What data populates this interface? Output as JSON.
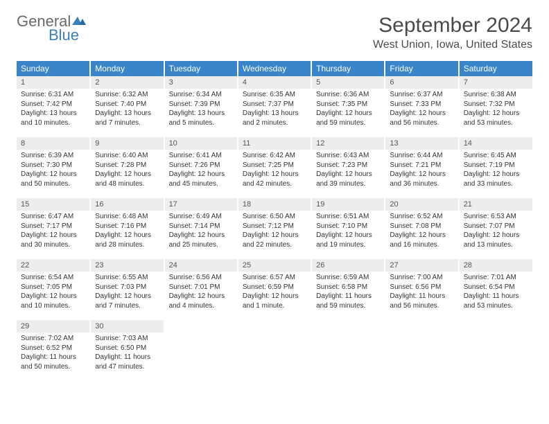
{
  "logo": {
    "word1": "General",
    "word2": "Blue"
  },
  "title": "September 2024",
  "location": "West Union, Iowa, United States",
  "colors": {
    "header_bg": "#3a85c9",
    "header_text": "#ffffff",
    "daynum_bg": "#eceded",
    "rule": "#3a7fb8",
    "logo_gray": "#6a6a6a",
    "logo_blue": "#3a7fb8"
  },
  "weekdays": [
    "Sunday",
    "Monday",
    "Tuesday",
    "Wednesday",
    "Thursday",
    "Friday",
    "Saturday"
  ],
  "days": [
    {
      "n": "1",
      "sunrise": "6:31 AM",
      "sunset": "7:42 PM",
      "daylight": "13 hours and 10 minutes."
    },
    {
      "n": "2",
      "sunrise": "6:32 AM",
      "sunset": "7:40 PM",
      "daylight": "13 hours and 7 minutes."
    },
    {
      "n": "3",
      "sunrise": "6:34 AM",
      "sunset": "7:39 PM",
      "daylight": "13 hours and 5 minutes."
    },
    {
      "n": "4",
      "sunrise": "6:35 AM",
      "sunset": "7:37 PM",
      "daylight": "13 hours and 2 minutes."
    },
    {
      "n": "5",
      "sunrise": "6:36 AM",
      "sunset": "7:35 PM",
      "daylight": "12 hours and 59 minutes."
    },
    {
      "n": "6",
      "sunrise": "6:37 AM",
      "sunset": "7:33 PM",
      "daylight": "12 hours and 56 minutes."
    },
    {
      "n": "7",
      "sunrise": "6:38 AM",
      "sunset": "7:32 PM",
      "daylight": "12 hours and 53 minutes."
    },
    {
      "n": "8",
      "sunrise": "6:39 AM",
      "sunset": "7:30 PM",
      "daylight": "12 hours and 50 minutes."
    },
    {
      "n": "9",
      "sunrise": "6:40 AM",
      "sunset": "7:28 PM",
      "daylight": "12 hours and 48 minutes."
    },
    {
      "n": "10",
      "sunrise": "6:41 AM",
      "sunset": "7:26 PM",
      "daylight": "12 hours and 45 minutes."
    },
    {
      "n": "11",
      "sunrise": "6:42 AM",
      "sunset": "7:25 PM",
      "daylight": "12 hours and 42 minutes."
    },
    {
      "n": "12",
      "sunrise": "6:43 AM",
      "sunset": "7:23 PM",
      "daylight": "12 hours and 39 minutes."
    },
    {
      "n": "13",
      "sunrise": "6:44 AM",
      "sunset": "7:21 PM",
      "daylight": "12 hours and 36 minutes."
    },
    {
      "n": "14",
      "sunrise": "6:45 AM",
      "sunset": "7:19 PM",
      "daylight": "12 hours and 33 minutes."
    },
    {
      "n": "15",
      "sunrise": "6:47 AM",
      "sunset": "7:17 PM",
      "daylight": "12 hours and 30 minutes."
    },
    {
      "n": "16",
      "sunrise": "6:48 AM",
      "sunset": "7:16 PM",
      "daylight": "12 hours and 28 minutes."
    },
    {
      "n": "17",
      "sunrise": "6:49 AM",
      "sunset": "7:14 PM",
      "daylight": "12 hours and 25 minutes."
    },
    {
      "n": "18",
      "sunrise": "6:50 AM",
      "sunset": "7:12 PM",
      "daylight": "12 hours and 22 minutes."
    },
    {
      "n": "19",
      "sunrise": "6:51 AM",
      "sunset": "7:10 PM",
      "daylight": "12 hours and 19 minutes."
    },
    {
      "n": "20",
      "sunrise": "6:52 AM",
      "sunset": "7:08 PM",
      "daylight": "12 hours and 16 minutes."
    },
    {
      "n": "21",
      "sunrise": "6:53 AM",
      "sunset": "7:07 PM",
      "daylight": "12 hours and 13 minutes."
    },
    {
      "n": "22",
      "sunrise": "6:54 AM",
      "sunset": "7:05 PM",
      "daylight": "12 hours and 10 minutes."
    },
    {
      "n": "23",
      "sunrise": "6:55 AM",
      "sunset": "7:03 PM",
      "daylight": "12 hours and 7 minutes."
    },
    {
      "n": "24",
      "sunrise": "6:56 AM",
      "sunset": "7:01 PM",
      "daylight": "12 hours and 4 minutes."
    },
    {
      "n": "25",
      "sunrise": "6:57 AM",
      "sunset": "6:59 PM",
      "daylight": "12 hours and 1 minute."
    },
    {
      "n": "26",
      "sunrise": "6:59 AM",
      "sunset": "6:58 PM",
      "daylight": "11 hours and 59 minutes."
    },
    {
      "n": "27",
      "sunrise": "7:00 AM",
      "sunset": "6:56 PM",
      "daylight": "11 hours and 56 minutes."
    },
    {
      "n": "28",
      "sunrise": "7:01 AM",
      "sunset": "6:54 PM",
      "daylight": "11 hours and 53 minutes."
    },
    {
      "n": "29",
      "sunrise": "7:02 AM",
      "sunset": "6:52 PM",
      "daylight": "11 hours and 50 minutes."
    },
    {
      "n": "30",
      "sunrise": "7:03 AM",
      "sunset": "6:50 PM",
      "daylight": "11 hours and 47 minutes."
    }
  ],
  "labels": {
    "sunrise": "Sunrise: ",
    "sunset": "Sunset: ",
    "daylight": "Daylight: "
  }
}
